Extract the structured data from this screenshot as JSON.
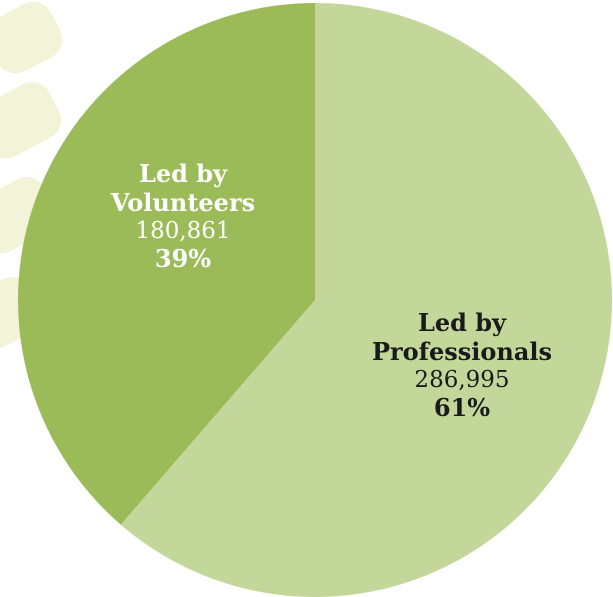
{
  "chart_data": {
    "type": "pie",
    "slices": [
      {
        "label_line1": "Led by",
        "label_line2": "Professionals",
        "value": 286995,
        "value_text": "286,995",
        "percent": 61,
        "percent_text": "61%",
        "color": "#c4d79b"
      },
      {
        "label_line1": "Led by",
        "label_line2": "Volunteers",
        "value": 180861,
        "value_text": "180,861",
        "percent": 39,
        "percent_text": "39%",
        "color": "#9bbb59"
      }
    ]
  },
  "background_decoration_color": "#f3f3d8"
}
